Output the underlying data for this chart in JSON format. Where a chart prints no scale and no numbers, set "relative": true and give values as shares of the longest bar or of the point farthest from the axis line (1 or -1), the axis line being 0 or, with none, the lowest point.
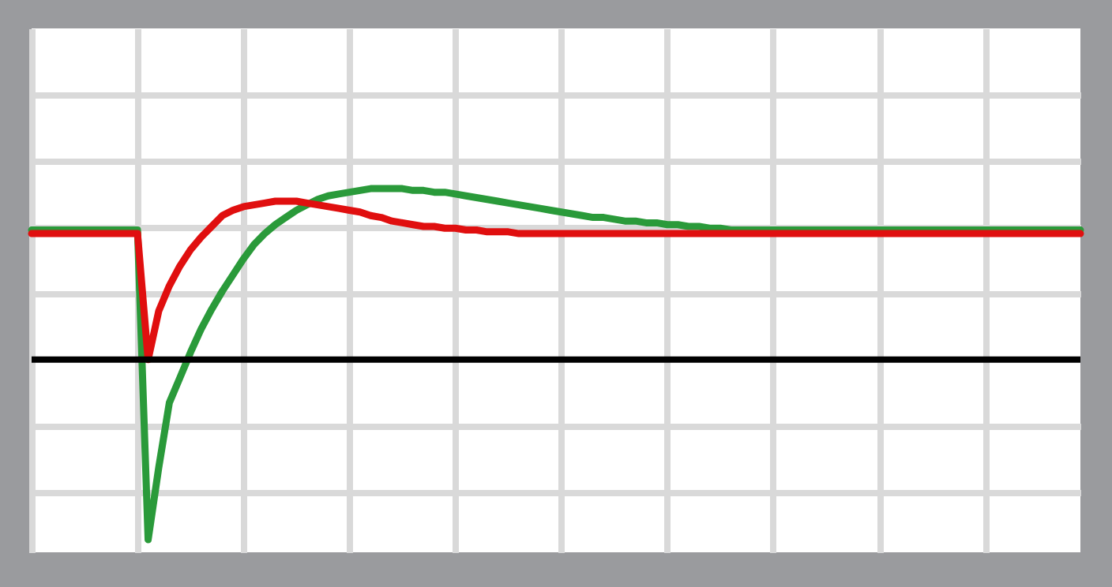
{
  "chart_data": {
    "type": "line",
    "relative": true,
    "grid": true,
    "line_style": "solid",
    "categories": [
      null,
      null,
      null,
      null,
      null,
      null,
      null,
      null,
      null,
      null,
      null,
      null,
      null,
      null,
      null,
      null,
      null,
      null,
      null,
      null,
      null,
      null,
      null,
      null,
      null,
      null,
      null,
      null,
      null,
      null,
      null,
      null,
      null,
      null,
      null,
      null,
      null,
      null,
      null,
      null,
      null,
      null,
      null,
      null,
      null,
      null,
      null,
      null,
      null,
      null,
      null,
      null,
      null,
      null,
      null,
      null,
      null,
      null,
      null,
      null,
      null,
      null,
      null,
      null,
      null,
      null,
      null,
      null,
      null,
      null,
      null,
      null,
      null,
      null,
      null,
      null,
      null,
      null,
      null,
      null,
      null,
      null,
      null,
      null,
      null,
      null,
      null,
      null,
      null,
      null,
      null,
      null,
      null,
      null,
      null,
      null,
      null,
      null,
      null,
      null
    ],
    "series": [
      {
        "color": "#2a9a3a",
        "values": [
          0.72,
          0.72,
          0.72,
          0.72,
          0.72,
          0.72,
          0.72,
          0.72,
          0.72,
          0.72,
          0.72,
          -1,
          -0.6,
          -0.24,
          -0.1,
          0.04,
          0.17,
          0.28,
          0.38,
          0.47,
          0.56,
          0.64,
          0.7,
          0.75,
          0.79,
          0.83,
          0.86,
          0.89,
          0.91,
          0.92,
          0.93,
          0.94,
          0.95,
          0.95,
          0.95,
          0.95,
          0.94,
          0.94,
          0.93,
          0.93,
          0.92,
          0.91,
          0.9,
          0.89,
          0.88,
          0.87,
          0.86,
          0.85,
          0.84,
          0.83,
          0.82,
          0.81,
          0.8,
          0.79,
          0.79,
          0.78,
          0.77,
          0.77,
          0.76,
          0.76,
          0.75,
          0.75,
          0.74,
          0.74,
          0.73,
          0.73,
          0.72,
          0.72,
          0.72,
          0.72,
          0.72,
          0.72,
          0.72,
          0.72,
          0.72,
          0.72,
          0.72,
          0.72,
          0.72,
          0.72,
          0.72,
          0.72,
          0.72,
          0.72,
          0.72,
          0.72,
          0.72,
          0.72,
          0.72,
          0.72,
          0.72,
          0.72,
          0.72,
          0.72,
          0.72,
          0.72,
          0.72,
          0.72,
          0.72,
          0.72
        ]
      },
      {
        "color": "#e00f0f",
        "values": [
          0.7,
          0.7,
          0.7,
          0.7,
          0.7,
          0.7,
          0.7,
          0.7,
          0.7,
          0.7,
          0.7,
          0,
          0.27,
          0.41,
          0.52,
          0.61,
          0.68,
          0.74,
          0.8,
          0.83,
          0.85,
          0.86,
          0.87,
          0.88,
          0.88,
          0.88,
          0.87,
          0.86,
          0.85,
          0.84,
          0.83,
          0.82,
          0.8,
          0.79,
          0.77,
          0.76,
          0.75,
          0.74,
          0.74,
          0.73,
          0.73,
          0.72,
          0.72,
          0.71,
          0.71,
          0.71,
          0.7,
          0.7,
          0.7,
          0.7,
          0.7,
          0.7,
          0.7,
          0.7,
          0.7,
          0.7,
          0.7,
          0.7,
          0.7,
          0.7,
          0.7,
          0.7,
          0.7,
          0.7,
          0.7,
          0.7,
          0.7,
          0.7,
          0.7,
          0.7,
          0.7,
          0.7,
          0.7,
          0.7,
          0.7,
          0.7,
          0.7,
          0.7,
          0.7,
          0.7,
          0.7,
          0.7,
          0.7,
          0.7,
          0.7,
          0.7,
          0.7,
          0.7,
          0.7,
          0.7,
          0.7,
          0.7,
          0.7,
          0.7,
          0.7,
          0.7,
          0.7,
          0.7,
          0.7,
          0.7
        ]
      }
    ]
  }
}
